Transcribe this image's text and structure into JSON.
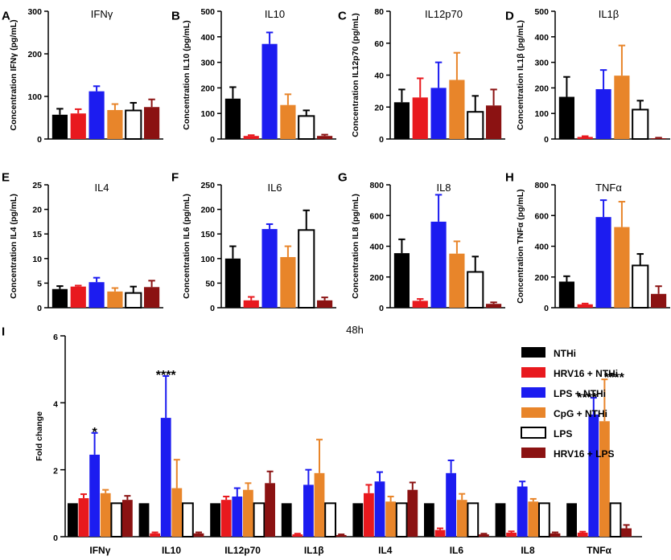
{
  "figure": {
    "series": [
      {
        "name": "NTHi",
        "color": "#000000",
        "hollow": false
      },
      {
        "name": "HRV16 + NTHi",
        "color": "#e8191e",
        "hollow": false
      },
      {
        "name": "LPS + NTHi",
        "color": "#1c1cf0",
        "hollow": false
      },
      {
        "name": "CpG + NTHi",
        "color": "#e8852a",
        "hollow": false
      },
      {
        "name": "LPS",
        "color": "#ffffff",
        "hollow": true
      },
      {
        "name": "HRV16 + LPS",
        "color": "#8b1212",
        "hollow": false
      }
    ],
    "bottom_title": "48h"
  },
  "chart_data": [
    {
      "id": "A",
      "letter": "A",
      "type": "bar",
      "title": "IFNγ",
      "ylabel": "Concentration IFNγ (pg/mL)",
      "ylim": [
        0,
        300
      ],
      "yticks": [
        "0",
        "100",
        "200",
        "300"
      ],
      "tickvals": [
        0,
        100,
        200,
        300
      ],
      "values": [
        57,
        60,
        112,
        68,
        67,
        75
      ],
      "errors": [
        14,
        10,
        12,
        14,
        18,
        18
      ]
    },
    {
      "id": "B",
      "letter": "B",
      "type": "bar",
      "title": "IL10",
      "ylabel": "Concentration IL10 (pg/mL)",
      "ylim": [
        0,
        500
      ],
      "yticks": [
        "0",
        "100",
        "200",
        "300",
        "400",
        "500"
      ],
      "tickvals": [
        0,
        100,
        200,
        300,
        400,
        500
      ],
      "values": [
        158,
        12,
        372,
        133,
        90,
        12
      ],
      "errors": [
        45,
        3,
        45,
        42,
        22,
        5
      ]
    },
    {
      "id": "C",
      "letter": "C",
      "type": "bar",
      "title": "IL12p70",
      "ylabel": "Concentration IL12p70 (pg/mL)",
      "ylim": [
        0,
        80
      ],
      "yticks": [
        "0",
        "20",
        "40",
        "60",
        "80"
      ],
      "tickvals": [
        0,
        20,
        40,
        60,
        80
      ],
      "values": [
        23,
        26,
        32,
        37,
        17,
        21
      ],
      "errors": [
        8,
        12,
        16,
        17,
        10,
        10
      ]
    },
    {
      "id": "D",
      "letter": "D",
      "type": "bar",
      "title": "IL1β",
      "ylabel": "Concentration IL1β (pg/mL)",
      "ylim": [
        0,
        500
      ],
      "yticks": [
        "0",
        "100",
        "200",
        "300",
        "400",
        "500"
      ],
      "tickvals": [
        0,
        100,
        200,
        300,
        400,
        500
      ],
      "values": [
        165,
        8,
        195,
        248,
        115,
        3
      ],
      "errors": [
        78,
        3,
        75,
        118,
        35,
        2
      ]
    },
    {
      "id": "E",
      "letter": "E",
      "type": "bar",
      "title": "IL4",
      "ylabel": "Concentration IL4 (pg/mL)",
      "ylim": [
        0,
        25
      ],
      "yticks": [
        "0",
        "5",
        "10",
        "15",
        "20",
        "25"
      ],
      "tickvals": [
        0,
        5,
        10,
        15,
        20,
        25
      ],
      "values": [
        3.8,
        4.3,
        5.2,
        3.3,
        3.0,
        4.2
      ],
      "errors": [
        0.6,
        0.2,
        0.9,
        0.7,
        1.3,
        1.3
      ]
    },
    {
      "id": "F",
      "letter": "F",
      "type": "bar",
      "title": "IL6",
      "ylabel": "Concentration IL6 (pg/mL)",
      "ylim": [
        0,
        250
      ],
      "yticks": [
        "0",
        "50",
        "100",
        "150",
        "200",
        "250"
      ],
      "tickvals": [
        0,
        50,
        100,
        150,
        200,
        250
      ],
      "values": [
        100,
        15,
        160,
        103,
        158,
        15
      ],
      "errors": [
        25,
        7,
        10,
        22,
        40,
        6
      ]
    },
    {
      "id": "G",
      "letter": "G",
      "type": "bar",
      "title": "IL8",
      "ylabel": "Concentration IL8 (pg/mL)",
      "ylim": [
        0,
        800
      ],
      "yticks": [
        "0",
        "200",
        "400",
        "600",
        "800"
      ],
      "tickvals": [
        0,
        200,
        400,
        600,
        800
      ],
      "values": [
        355,
        45,
        560,
        352,
        233,
        25
      ],
      "errors": [
        90,
        12,
        175,
        80,
        100,
        10
      ]
    },
    {
      "id": "H",
      "letter": "H",
      "type": "bar",
      "title": "TNFα",
      "ylabel": "Concentration TNFα (pg/mL)",
      "ylim": [
        0,
        800
      ],
      "yticks": [
        "0",
        "200",
        "400",
        "600",
        "800"
      ],
      "tickvals": [
        0,
        200,
        400,
        600,
        800
      ],
      "values": [
        170,
        22,
        590,
        525,
        275,
        90
      ],
      "errors": [
        35,
        5,
        110,
        165,
        75,
        50
      ]
    },
    {
      "id": "I",
      "letter": "I",
      "type": "bar",
      "title": "48h",
      "xlabel": "",
      "ylabel": "Fold change",
      "ylim": [
        0,
        6
      ],
      "yticks": [
        "0",
        "2",
        "4",
        "6"
      ],
      "tickvals": [
        0,
        2,
        4,
        6
      ],
      "categories": [
        "IFNγ",
        "IL10",
        "IL12p70",
        "IL1β",
        "IL4",
        "IL6",
        "IL8",
        "TNFα"
      ],
      "series": [
        {
          "name": "NTHi",
          "values": [
            1,
            1,
            1,
            1,
            1,
            1,
            1,
            1
          ],
          "errors": [
            0,
            0,
            0,
            0,
            0,
            0,
            0,
            0
          ]
        },
        {
          "name": "HRV16 + NTHi",
          "values": [
            1.15,
            0.1,
            1.1,
            0.07,
            1.3,
            0.2,
            0.12,
            0.12
          ],
          "errors": [
            0.12,
            0.03,
            0.1,
            0.02,
            0.25,
            0.05,
            0.04,
            0.03
          ]
        },
        {
          "name": "LPS + NTHi",
          "values": [
            2.45,
            3.55,
            1.2,
            1.55,
            1.65,
            1.9,
            1.5,
            3.65
          ],
          "errors": [
            0.65,
            1.25,
            0.25,
            0.45,
            0.28,
            0.38,
            0.15,
            0.5
          ]
        },
        {
          "name": "CpG + NTHi",
          "values": [
            1.3,
            1.45,
            1.4,
            1.9,
            1.05,
            1.1,
            1.05,
            3.45
          ],
          "errors": [
            0.1,
            0.85,
            0.2,
            1.0,
            0.15,
            0.18,
            0.08,
            1.25
          ]
        },
        {
          "name": "LPS",
          "values": [
            1,
            1,
            1,
            1,
            1,
            1,
            1,
            1
          ],
          "errors": [
            0,
            0,
            0,
            0,
            0,
            0,
            0,
            0
          ]
        },
        {
          "name": "HRV16 + LPS",
          "values": [
            1.1,
            0.1,
            1.6,
            0.05,
            1.4,
            0.07,
            0.1,
            0.25
          ],
          "errors": [
            0.12,
            0.03,
            0.35,
            0.02,
            0.22,
            0.02,
            0.03,
            0.1
          ]
        }
      ],
      "annotations": [
        {
          "category": "IFNγ",
          "series": "LPS + NTHi",
          "text": "*"
        },
        {
          "category": "IL10",
          "series": "LPS + NTHi",
          "text": "****"
        },
        {
          "category": "TNFα",
          "series": "LPS + NTHi",
          "text": "****"
        },
        {
          "category": "TNFα",
          "series": "CpG + NTHi",
          "text": "****"
        }
      ],
      "legend": "top-right"
    }
  ]
}
